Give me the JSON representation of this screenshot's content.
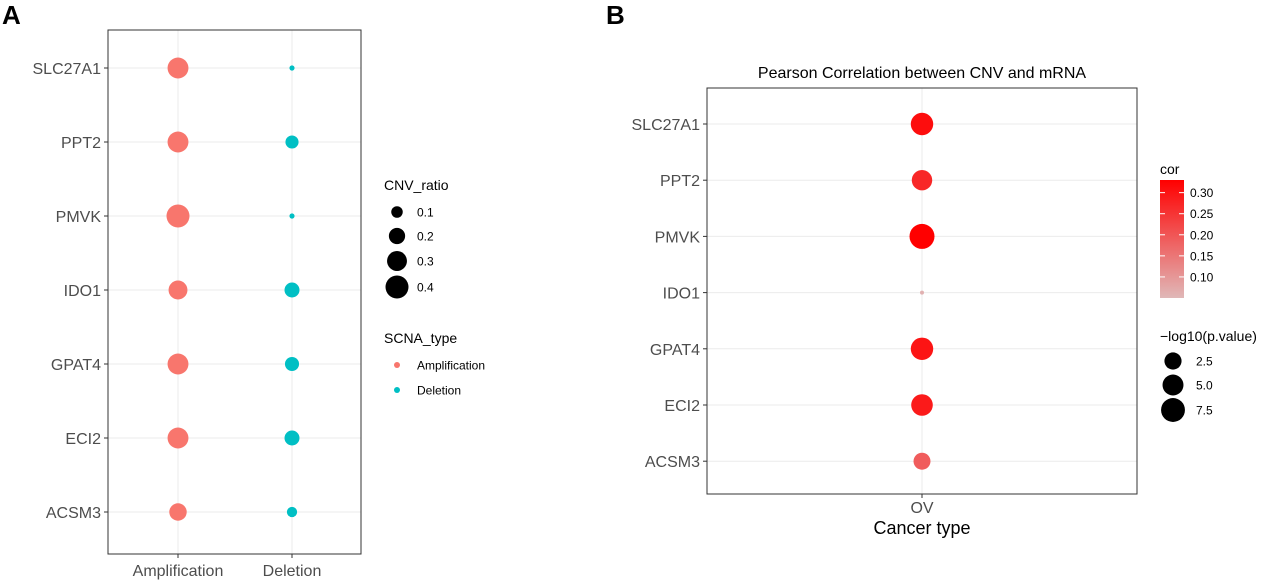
{
  "chart_data": [
    {
      "panel": "A",
      "type": "scatter",
      "title": "",
      "xlabel": "",
      "ylabel": "",
      "categories_x": [
        "Amplification",
        "Deletion"
      ],
      "categories_y": [
        "SLC27A1",
        "PPT2",
        "PMVK",
        "IDO1",
        "GPAT4",
        "ECI2",
        "ACSM3"
      ],
      "series": [
        {
          "name": "Amplification",
          "color": "#F8766D",
          "points": [
            {
              "gene": "SLC27A1",
              "cnv_ratio": 0.33
            },
            {
              "gene": "PPT2",
              "cnv_ratio": 0.33
            },
            {
              "gene": "PMVK",
              "cnv_ratio": 0.4
            },
            {
              "gene": "IDO1",
              "cnv_ratio": 0.27
            },
            {
              "gene": "GPAT4",
              "cnv_ratio": 0.33
            },
            {
              "gene": "ECI2",
              "cnv_ratio": 0.33
            },
            {
              "gene": "ACSM3",
              "cnv_ratio": 0.23
            }
          ]
        },
        {
          "name": "Deletion",
          "color": "#00BFC4",
          "points": [
            {
              "gene": "SLC27A1",
              "cnv_ratio": 0.02
            },
            {
              "gene": "PPT2",
              "cnv_ratio": 0.13
            },
            {
              "gene": "PMVK",
              "cnv_ratio": 0.02
            },
            {
              "gene": "IDO1",
              "cnv_ratio": 0.17
            },
            {
              "gene": "GPAT4",
              "cnv_ratio": 0.15
            },
            {
              "gene": "ECI2",
              "cnv_ratio": 0.17
            },
            {
              "gene": "ACSM3",
              "cnv_ratio": 0.08
            }
          ]
        }
      ],
      "size_legend": {
        "title": "CNV_ratio",
        "breaks": [
          0.1,
          0.2,
          0.3,
          0.4
        ],
        "labels": [
          "0.1",
          "0.2",
          "0.3",
          "0.4"
        ]
      },
      "color_legend": {
        "title": "SCNA_type",
        "entries": [
          "Amplification",
          "Deletion"
        ],
        "colors": [
          "#F8766D",
          "#00BFC4"
        ]
      }
    },
    {
      "panel": "B",
      "type": "scatter",
      "title": "Pearson Correlation between CNV and mRNA",
      "xlabel": "Cancer type",
      "ylabel": "",
      "categories_x": [
        "OV"
      ],
      "categories_y": [
        "SLC27A1",
        "PPT2",
        "PMVK",
        "IDO1",
        "GPAT4",
        "ECI2",
        "ACSM3"
      ],
      "points": [
        {
          "gene": "SLC27A1",
          "cancer": "OV",
          "cor": 0.31,
          "neglog10p": 6.2
        },
        {
          "gene": "PPT2",
          "cancer": "OV",
          "cor": 0.27,
          "neglog10p": 4.6
        },
        {
          "gene": "PMVK",
          "cancer": "OV",
          "cor": 0.33,
          "neglog10p": 8.6
        },
        {
          "gene": "IDO1",
          "cancer": "OV",
          "cor": 0.06,
          "neglog10p": 0.3
        },
        {
          "gene": "GPAT4",
          "cancer": "OV",
          "cor": 0.3,
          "neglog10p": 6.2
        },
        {
          "gene": "ECI2",
          "cancer": "OV",
          "cor": 0.29,
          "neglog10p": 5.5
        },
        {
          "gene": "ACSM3",
          "cancer": "OV",
          "cor": 0.19,
          "neglog10p": 2.4
        }
      ],
      "color_legend": {
        "title": "cor",
        "low_color": "#E0B8B8",
        "high_color": "#FF0000",
        "range": [
          0.05,
          0.33
        ],
        "breaks": [
          0.1,
          0.15,
          0.2,
          0.25,
          0.3
        ],
        "labels": [
          "0.10",
          "0.15",
          "0.20",
          "0.25",
          "0.30"
        ]
      },
      "size_legend": {
        "title": "−log10(p.value)",
        "breaks": [
          2.5,
          5.0,
          7.5
        ],
        "labels": [
          "2.5",
          "5.0",
          "7.5"
        ]
      }
    }
  ],
  "panel_labels": {
    "a": "A",
    "b": "B"
  }
}
